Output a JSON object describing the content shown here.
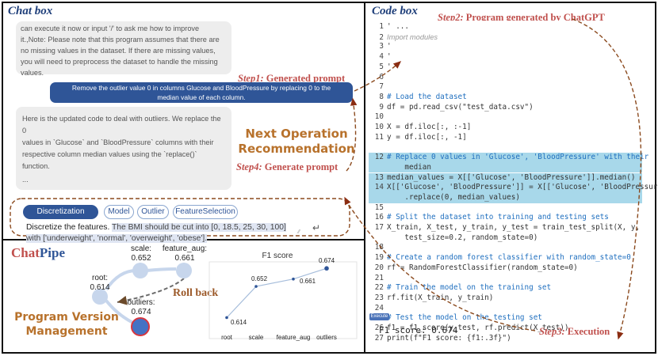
{
  "chat_box": {
    "title": "Chat box",
    "reply1_lines": [
      "can execute it now or input '/' to ask me how to improve",
      "it.,Note: Please note that this program assumes that there are",
      "no missing values in the dataset. If there are missing values,",
      "you will need to preprocess the dataset to handle the missing",
      "values."
    ],
    "user_message_lines": [
      "Remove the outlier value 0 in columns Glucose and BloodPressure by replacing 0 to the",
      "median value of each column."
    ],
    "reply2_lines": [
      "Here is the updated code to deal with outliers. We replace the 0",
      "values in `Glucose` and `BloodPressure` columns with their",
      "respective column median values using the `replace()` function.",
      "..."
    ],
    "step1": {
      "step": "Step1:",
      "text": "Generated prompt"
    },
    "next_operation_lines": [
      "Next Operation",
      "Recommendation"
    ],
    "step4": {
      "step": "Step4:",
      "text": "Generate prompt"
    },
    "tabs": [
      "Discretization",
      "Model",
      "Outlier",
      "FeatureSelection"
    ],
    "prompt_lead": "Discretize the features.",
    "prompt_rest_line1": "The BMI should be cut into [0, 18.5, 25, 30, 100]",
    "prompt_line2": "with ['underweight', 'normal', 'overweight', 'obese'].",
    "send_icon": "enter-arrow-icon"
  },
  "code_box": {
    "title": "Code box",
    "step2": {
      "step": "Step2:",
      "text": "Program generated by ChatGPT"
    },
    "step3": {
      "step": "Step3:",
      "text": "Execution"
    },
    "execute_label": "Execute",
    "output": "F1 score: 0.674",
    "lines": [
      {
        "n": "1",
        "t": "' ..."
      },
      {
        "n": "2",
        "t": "Import modules"
      },
      {
        "n": "3",
        "t": "'"
      },
      {
        "n": "4",
        "t": "'"
      },
      {
        "n": "5",
        "t": "'"
      },
      {
        "n": "6",
        "t": ""
      },
      {
        "n": "7",
        "t": ""
      },
      {
        "n": "8",
        "t": "# Load the dataset"
      },
      {
        "n": "9",
        "t": "df = pd.read_csv(\"test_data.csv\")"
      },
      {
        "n": "10",
        "t": ""
      },
      {
        "n": "10",
        "t": "X = df.iloc[:, :-1]"
      },
      {
        "n": "11",
        "t": "y = df.iloc[:, -1]"
      },
      {
        "n": "",
        "t": ""
      },
      {
        "n": "12",
        "t": "# Replace 0 values in 'Glucose', 'BloodPressure' with their"
      },
      {
        "n": "",
        "t": "    median"
      },
      {
        "n": "13",
        "t": "median_values = X[['Glucose', 'BloodPressure']].median()"
      },
      {
        "n": "14",
        "t": "X[['Glucose', 'BloodPressure']] = X[['Glucose', 'BloodPressure']]"
      },
      {
        "n": "",
        "t": "    .replace(0, median_values)"
      },
      {
        "n": "15",
        "t": ""
      },
      {
        "n": "16",
        "t": "# Split the dataset into training and testing sets"
      },
      {
        "n": "17",
        "t": "X_train, X_test, y_train, y_test = train_test_split(X, y,"
      },
      {
        "n": "",
        "t": "    test_size=0.2, random_state=0)"
      },
      {
        "n": "18",
        "t": ""
      },
      {
        "n": "19",
        "t": "# Create a random forest classifier with random_state=0"
      },
      {
        "n": "20",
        "t": "rf = RandomForestClassifier(random_state=0)"
      },
      {
        "n": "21",
        "t": ""
      },
      {
        "n": "22",
        "t": "# Train the model on the training set"
      },
      {
        "n": "23",
        "t": "rf.fit(X_train, y_train)"
      },
      {
        "n": "24",
        "t": ""
      },
      {
        "n": "25",
        "t": "# Test the model on the testing set"
      },
      {
        "n": "26",
        "t": "f1 = f1_score(y_test, rf.predict(X_test))"
      },
      {
        "n": "27",
        "t": "print(f\"F1 score: {f1:.3f}\")"
      }
    ]
  },
  "version_mgmt": {
    "logo_part1": "Chat",
    "logo_part2": "Pipe",
    "title_lines": [
      "Program Version",
      "Management"
    ],
    "rollback": "Roll back",
    "nodes": [
      {
        "name": "root:",
        "score": "0.614"
      },
      {
        "name": "scale:",
        "score": "0.652"
      },
      {
        "name": "feature_aug:",
        "score": "0.661"
      },
      {
        "name": "outliers:",
        "score": "0.674"
      }
    ]
  },
  "chart_data": {
    "type": "line",
    "title": "F1 score",
    "categories": [
      "root",
      "scale",
      "feature_aug",
      "outliers"
    ],
    "values": [
      0.614,
      0.652,
      0.661,
      0.674
    ],
    "ylim": [
      0.6,
      0.68
    ],
    "colors": {
      "line": "#a6bddb",
      "point": "#2f5597",
      "last_point": "#2f5597"
    }
  },
  "colors": {
    "accent": "#2f5597",
    "step": "#c0504d",
    "orange": "#b8722c",
    "highlight": "#a8d8ea"
  }
}
